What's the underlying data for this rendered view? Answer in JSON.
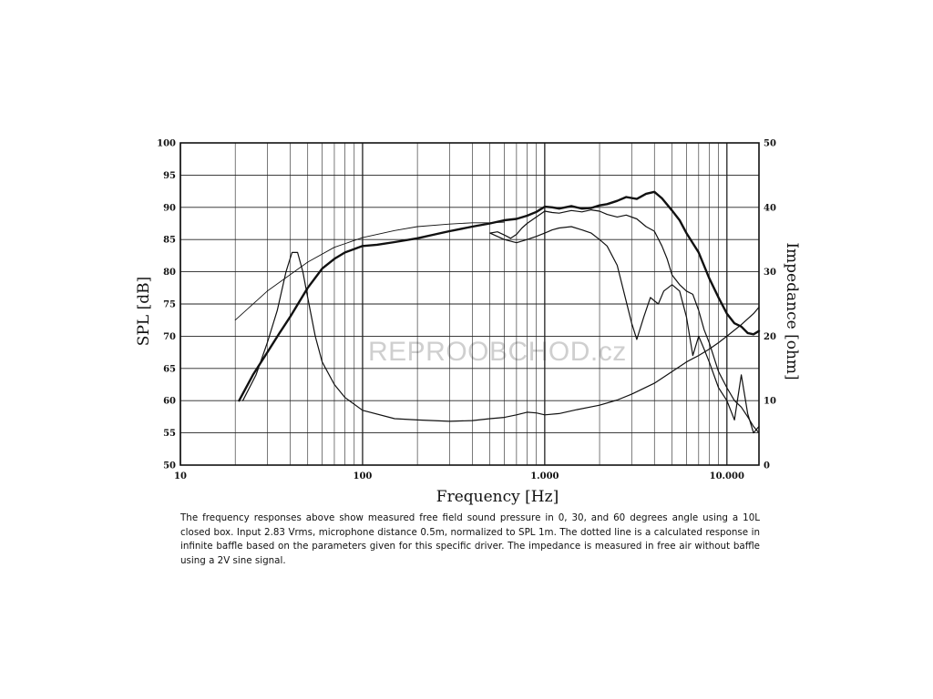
{
  "watermark": "REPROOBCHOD.cz",
  "caption": "The frequency responses above show measured free field sound pressure in 0, 30, and 60 degrees angle using a 10L closed box. Input 2.83 Vrms, microphone distance 0.5m, normalized to SPL 1m.  The dotted line is a calculated response in infinite baffle based on the parameters given for this specific driver. The impedance is measured in free air without baffle using a 2V sine signal.",
  "chart_data": {
    "type": "line",
    "xlabel": "Frequency [Hz]",
    "ylabel": "SPL [dB]",
    "y2label": "Impedance [ohm]",
    "xscale": "log",
    "xlim": [
      10,
      15000
    ],
    "ylim": [
      50,
      100
    ],
    "y2lim": [
      0,
      50
    ],
    "grid": true,
    "x_ticks": [
      {
        "value": 10,
        "label": "10"
      },
      {
        "value": 100,
        "label": "100"
      },
      {
        "value": 1000,
        "label": "1.000"
      },
      {
        "value": 10000,
        "label": "10.000"
      }
    ],
    "y_ticks": [
      "50",
      "55",
      "60",
      "65",
      "70",
      "75",
      "80",
      "85",
      "90",
      "95",
      "100"
    ],
    "y2_ticks": [
      "0",
      "10",
      "20",
      "30",
      "40",
      "50"
    ],
    "series": [
      {
        "axis": "left",
        "weight": "heavy",
        "x": [
          21,
          25,
          30,
          35,
          40,
          50,
          60,
          70,
          80,
          100,
          120,
          150,
          200,
          250,
          300,
          400,
          500,
          600,
          700,
          800,
          900,
          1000,
          1100,
          1200,
          1400,
          1600,
          1800,
          2000,
          2200,
          2500,
          2800,
          3200,
          3600,
          4000,
          4400,
          5000,
          5500,
          6000,
          7000,
          8000,
          9000,
          10000,
          11000,
          12000,
          13000,
          14000,
          15000
        ],
        "y": [
          60,
          64,
          67.5,
          70.5,
          73,
          77.5,
          80.5,
          82,
          83,
          84,
          84.2,
          84.6,
          85.2,
          85.8,
          86.3,
          87,
          87.5,
          88,
          88.2,
          88.7,
          89.3,
          90.1,
          90,
          89.8,
          90.2,
          89.8,
          89.9,
          90.3,
          90.5,
          91,
          91.6,
          91.3,
          92.1,
          92.4,
          91.4,
          89.5,
          88,
          86,
          83,
          79,
          76,
          73.5,
          72,
          71.5,
          70.5,
          70.3,
          70.8
        ]
      },
      {
        "axis": "left",
        "weight": "normal",
        "x": [
          500,
          550,
          600,
          650,
          700,
          750,
          800,
          900,
          1000,
          1100,
          1200,
          1400,
          1600,
          1800,
          2000,
          2200,
          2500,
          2800,
          3200,
          3600,
          4000,
          4400,
          4700,
          5000,
          5500,
          6000,
          6500,
          7000,
          7500,
          8000,
          9000,
          10000,
          11000,
          12000,
          13000,
          14000,
          15000
        ],
        "y": [
          86,
          86.2,
          85.7,
          85.2,
          85.8,
          86.8,
          87.5,
          88.5,
          89.4,
          89.2,
          89.1,
          89.5,
          89.3,
          89.6,
          89.4,
          88.9,
          88.5,
          88.8,
          88.2,
          87,
          86.3,
          84,
          82,
          79.5,
          78,
          77,
          76.5,
          74,
          71,
          69,
          64.5,
          62,
          60,
          59,
          57.5,
          56,
          55
        ]
      },
      {
        "axis": "left",
        "weight": "normal",
        "x": [
          500,
          600,
          700,
          800,
          900,
          1000,
          1100,
          1200,
          1400,
          1600,
          1800,
          2000,
          2200,
          2500,
          3000,
          3200,
          3500,
          3800,
          4200,
          4500,
          5000,
          5500,
          6000,
          6500,
          7000,
          7500,
          8000,
          9000,
          10000,
          11000,
          12000,
          13000,
          14000,
          15000
        ],
        "y": [
          86,
          85,
          84.5,
          85,
          85.5,
          86,
          86.5,
          86.8,
          87,
          86.5,
          86,
          85,
          84,
          81,
          72,
          69.5,
          73,
          76,
          75,
          77,
          78,
          77,
          73,
          67,
          70,
          68,
          66,
          62,
          60,
          57,
          64,
          58,
          55,
          56
        ]
      },
      {
        "axis": "left",
        "weight": "thin",
        "x": [
          20,
          30,
          50,
          70,
          100,
          150,
          200,
          300,
          400,
          500,
          600
        ],
        "y": [
          72.5,
          77,
          81.5,
          83.8,
          85.3,
          86.4,
          87,
          87.4,
          87.6,
          87.6,
          87.7
        ]
      },
      {
        "axis": "right",
        "weight": "normal",
        "x": [
          22,
          26,
          30,
          34,
          38,
          41,
          44,
          47,
          50,
          55,
          60,
          70,
          80,
          100,
          150,
          200,
          300,
          400,
          500,
          600,
          700,
          800,
          900,
          1000,
          1200,
          1500,
          2000,
          2500,
          3000,
          4000,
          5000,
          6000,
          7000,
          8000,
          9000,
          10000,
          12000,
          14000,
          15000
        ],
        "y": [
          10,
          14,
          19,
          24,
          30,
          33,
          33,
          30,
          26,
          20,
          16,
          12.5,
          10.5,
          8.5,
          7.2,
          7,
          6.8,
          6.9,
          7.2,
          7.4,
          7.8,
          8.2,
          8.1,
          7.8,
          8,
          8.6,
          9.3,
          10.1,
          11,
          12.7,
          14.5,
          16,
          17,
          18,
          19,
          20,
          21.8,
          23.5,
          24.5
        ]
      }
    ]
  }
}
